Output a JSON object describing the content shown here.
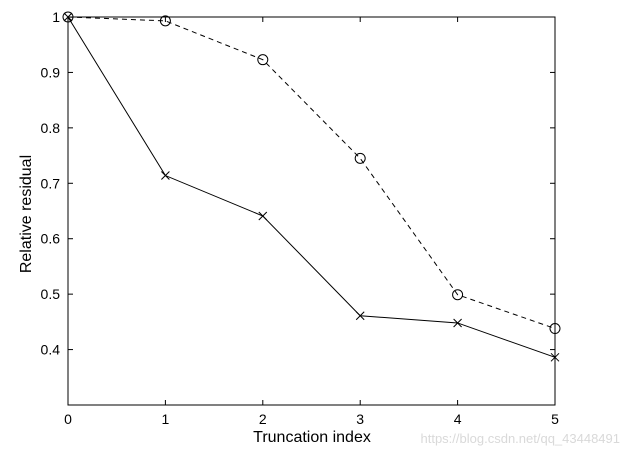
{
  "chart_data": {
    "type": "line",
    "xlabel": "Truncation index",
    "ylabel": "Relative residual",
    "xlim": [
      0,
      5
    ],
    "ylim": [
      0.3,
      1.0
    ],
    "x_ticks": [
      "0",
      "1",
      "2",
      "3",
      "4",
      "5"
    ],
    "y_ticks": [
      "0.4",
      "0.5",
      "0.6",
      "0.7",
      "0.8",
      "0.9",
      "1"
    ],
    "grid": false,
    "series": [
      {
        "x": [
          0,
          1,
          2,
          3,
          4,
          5
        ],
        "values": [
          1.0,
          0.714,
          0.641,
          0.461,
          0.448,
          0.386
        ],
        "line_style": "solid",
        "marker": "x",
        "color": "#000000"
      },
      {
        "x": [
          0,
          1,
          2,
          3,
          4,
          5
        ],
        "values": [
          1.0,
          0.993,
          0.923,
          0.745,
          0.499,
          0.438
        ],
        "line_style": "dashed",
        "marker": "circle",
        "color": "#000000"
      }
    ]
  },
  "watermark": "https://blog.csdn.net/qq_43448491"
}
